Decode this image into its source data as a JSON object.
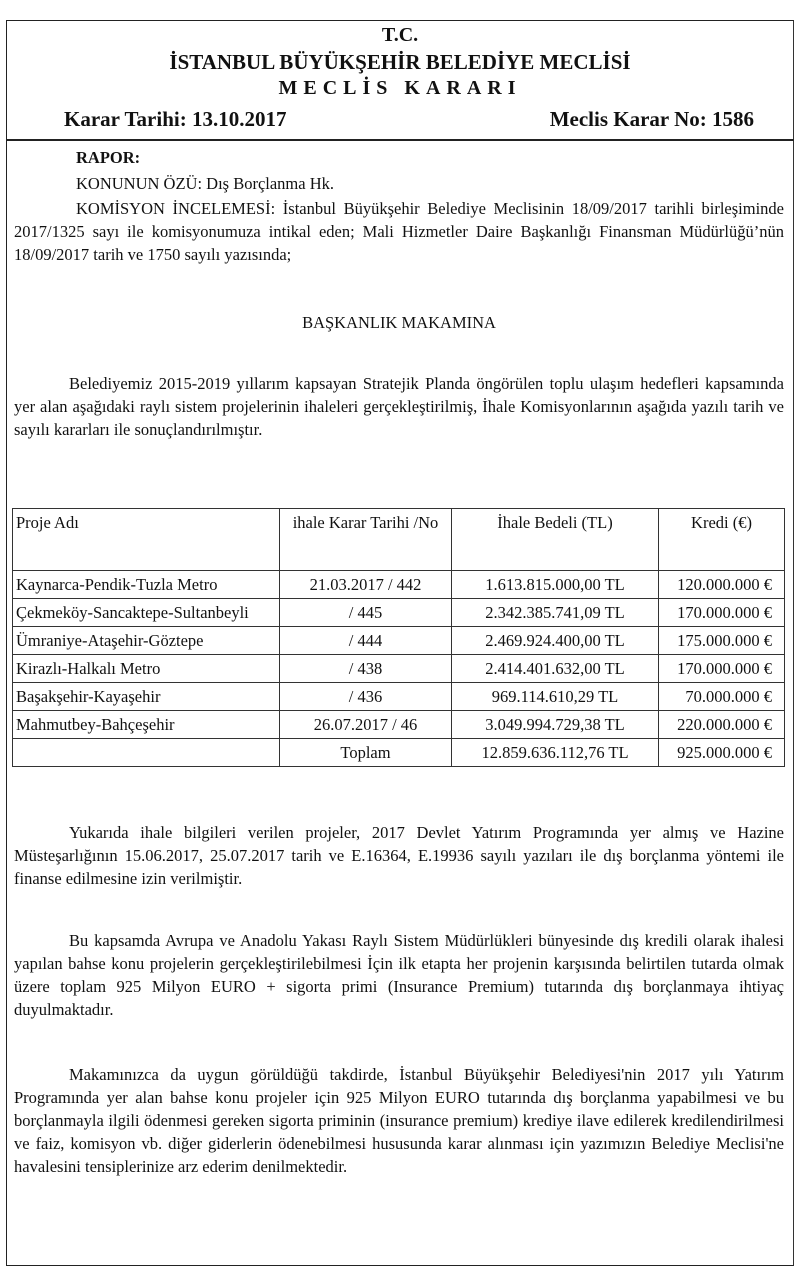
{
  "header": {
    "line1": "T.C.",
    "line2": "İSTANBUL BÜYÜKŞEHİR BELEDİYE MECLİSİ",
    "line3": "MECLİS KARARI",
    "karar_tarihi": "Karar Tarihi: 13.10.2017",
    "karar_no": "Meclis Karar No: 1586"
  },
  "report": {
    "rapor": "RAPOR:",
    "konu": "KONUNUN ÖZÜ: Dış Borçlanma Hk.",
    "komisyon": "KOMİSYON İNCELEMESİ: İstanbul Büyükşehir Belediye Meclisinin 18/09/2017 tarihli birleşiminde 2017/1325 sayı ile komisyonumuza intikal eden; Mali Hizmetler Daire Başkanlığı Finansman Müdürlüğü’nün 18/09/2017 tarih ve 1750 sayılı yazısında;",
    "baskanlik": "BAŞKANLIK MAKAMINA",
    "p1": "Belediyemiz 2015-2019 yıllarım kapsayan Stratejik Planda öngörülen toplu ulaşım hedefleri kapsamında yer alan aşağıdaki raylı sistem projelerinin ihaleleri gerçekleştirilmiş, İhale Komisyonlarının aşağıda yazılı tarih ve sayılı kararları ile sonuçlandırılmıştır.",
    "p2": "Yukarıda ihale bilgileri verilen projeler, 2017 Devlet Yatırım Programında yer almış ve Hazine Müsteşarlığının 15.06.2017, 25.07.2017 tarih ve E.16364, E.19936 sayılı yazıları ile dış borçlanma yöntemi ile finanse edilmesine izin verilmiştir.",
    "p3": "Bu kapsamda Avrupa ve Anadolu Yakası Raylı Sistem Müdürlükleri bünyesinde dış kredili olarak ihalesi yapılan bahse konu projelerin gerçekleştirilebilmesi İçin ilk etapta her projenin karşısında belirtilen tutarda olmak üzere toplam 925 Milyon EURO + sigorta primi (Insurance Premium) tutarında dış borçlanmaya ihtiyaç duyulmaktadır.",
    "p4": "Makamınızca da uygun görüldüğü takdirde, İstanbul Büyükşehir Belediyesi'nin 2017 yılı Yatırım Programında yer alan bahse konu projeler için 925 Milyon EURO tutarında dış borçlanma yapabilmesi ve bu borçlanmayla ilgili ödenmesi gereken sigorta priminin (insurance premium) krediye ilave edilerek kredilendirilmesi ve faiz, komisyon vb. diğer giderlerin ödenebilmesi hususunda karar alınması için yazımızın Belediye Meclisi'ne havalesini tensiplerinize arz ederim denilmektedir."
  },
  "table": {
    "headers": [
      "Proje Adı",
      "ihale Karar Tarihi /No",
      "İhale Bedeli (TL)",
      "Kredi (€)"
    ],
    "rows": [
      [
        "Kaynarca-Pendik-Tuzla Metro",
        "21.03.2017 / 442",
        "1.613.815.000,00 TL",
        "120.000.000 €"
      ],
      [
        "Çekmeköy-Sancaktepe-Sultanbeyli",
        "/ 445",
        "2.342.385.741,09 TL",
        "170.000.000 €"
      ],
      [
        "Ümraniye-Ataşehir-Göztepe",
        "/ 444",
        "2.469.924.400,00 TL",
        "175.000.000 €"
      ],
      [
        "Kirazlı-Halkalı Metro",
        "/ 438",
        "2.414.401.632,00 TL",
        "170.000.000 €"
      ],
      [
        "Başakşehir-Kayaşehir",
        "/ 436",
        "969.114.610,29 TL",
        "70.000.000 €"
      ],
      [
        "Mahmutbey-Bahçeşehir",
        "26.07.2017 / 46",
        "3.049.994.729,38 TL",
        "220.000.000 €"
      ]
    ],
    "total": {
      "label": "Toplam",
      "tl": "12.859.636.112,76 TL",
      "eur": "925.000.000 €"
    }
  }
}
